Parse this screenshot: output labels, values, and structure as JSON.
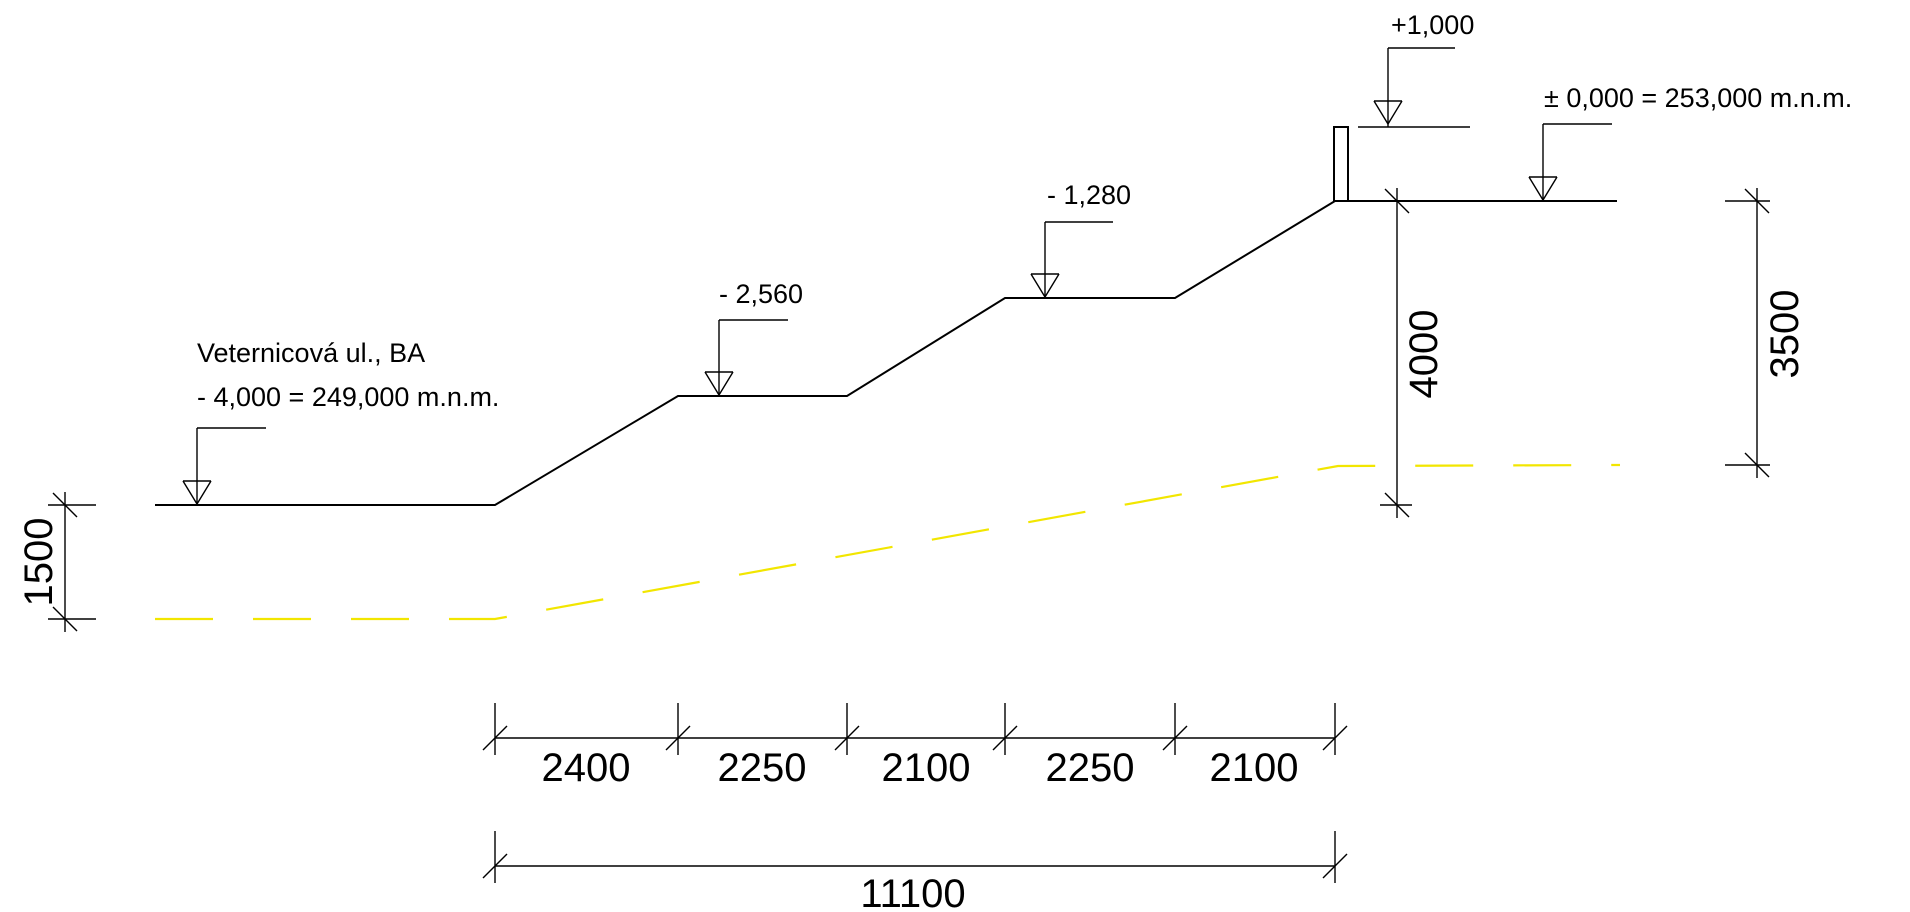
{
  "street": {
    "name": "Veternicová ul., BA",
    "elevation": "- 4,000 = 249,000 m.n.m."
  },
  "levels": [
    {
      "id": "top-datum",
      "label": "± 0,000 = 253,000 m.n.m."
    },
    {
      "id": "step-1280",
      "label": "- 1,280"
    },
    {
      "id": "step-2560",
      "label": "- 2,560"
    },
    {
      "id": "parapet",
      "label": "+1,000"
    }
  ],
  "dimensions": {
    "horizontal_segments": [
      "2400",
      "2250",
      "2100",
      "2250",
      "2100"
    ],
    "horizontal_total": "11100",
    "vertical_left": "1500",
    "vertical_mid": "4000",
    "vertical_right": "3500"
  },
  "colors": {
    "terrain_line": "#000000",
    "dashed_line": "#f2e600",
    "background": "#ffffff"
  }
}
